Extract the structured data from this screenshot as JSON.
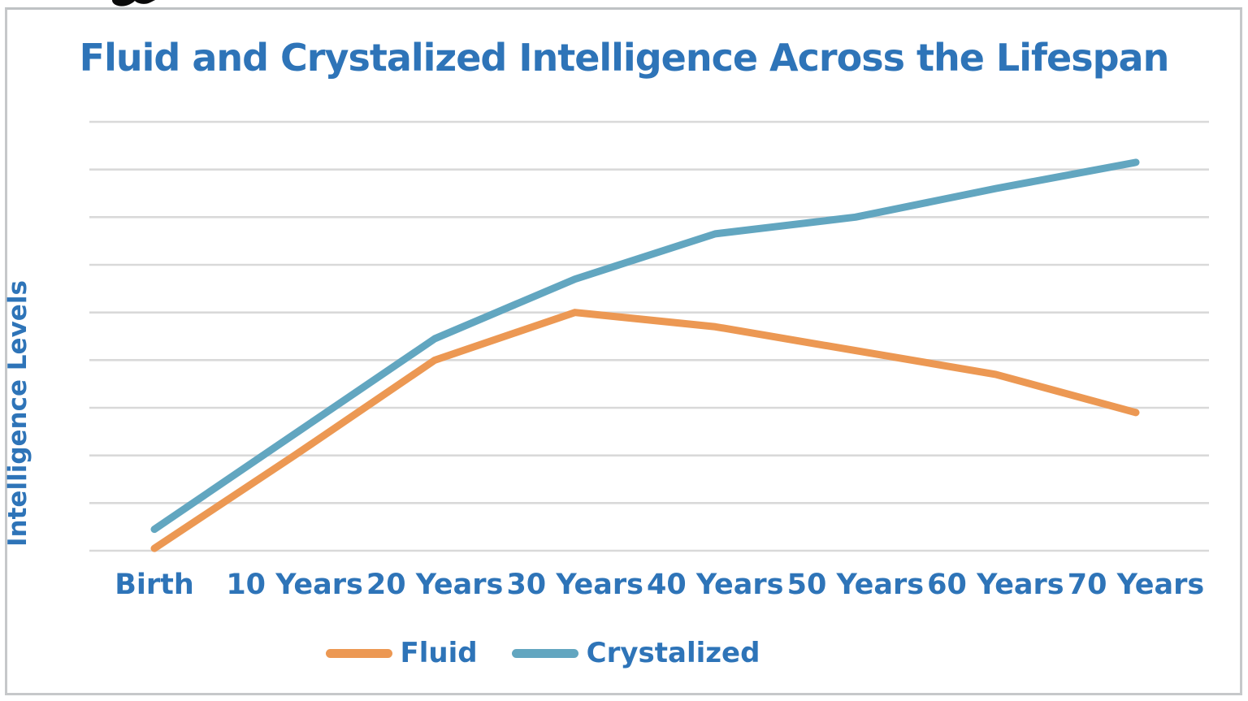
{
  "figure": {
    "border_color": "#c6c8ca",
    "background_color": "#ffffff"
  },
  "colors": {
    "title_text": "#2e74b8",
    "axis_text": "#2e74b8",
    "legend_text": "#2e74b8",
    "gridline": "#d9d9d9",
    "fluid_line": "#ec9853",
    "crystalized_line": "#62a6c0"
  },
  "chart_data": {
    "type": "line",
    "title": "Fluid and Crystalized Intelligence Across the Lifespan",
    "xlabel": "",
    "ylabel": "Intelligence Levels",
    "categories": [
      "Birth",
      "10 Years",
      "20 Years",
      "30 Years",
      "40 Years",
      "50 Years",
      "60 Years",
      "70 Years"
    ],
    "series": [
      {
        "name": "Fluid",
        "color": "#ec9853",
        "values": [
          0.05,
          2.0,
          4.0,
          5.0,
          4.7,
          4.2,
          3.7,
          2.9
        ]
      },
      {
        "name": "Crystalized",
        "color": "#62a6c0",
        "values": [
          0.45,
          2.45,
          4.45,
          5.7,
          6.65,
          7.0,
          7.6,
          8.15
        ]
      }
    ],
    "ylim": [
      0,
      9
    ],
    "gridline_count": 10,
    "grid": "horizontal-only",
    "y_tick_labels_visible": false,
    "legend_position": "bottom"
  }
}
